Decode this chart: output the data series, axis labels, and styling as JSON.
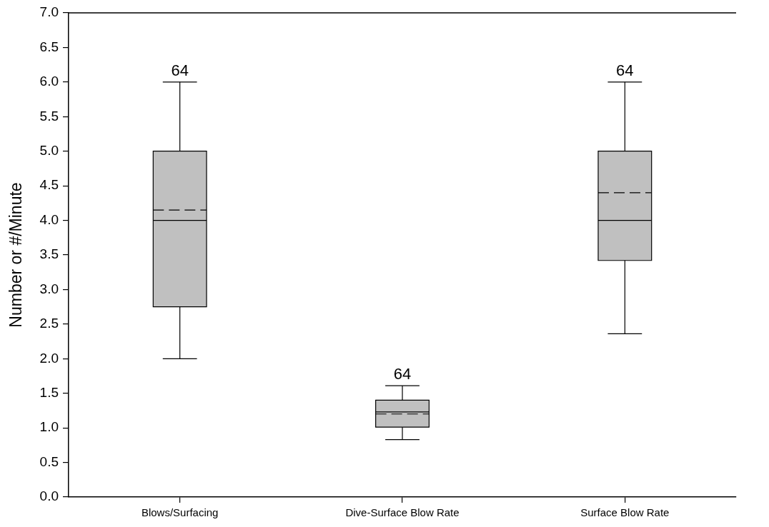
{
  "chart_data": {
    "type": "box",
    "ylabel": "Number or #/Minute",
    "categories": [
      "Blows/Surfacing",
      "Dive-Surface Blow Rate",
      "Surface Blow Rate"
    ],
    "color": "#c0c0c0",
    "boxes": [
      {
        "low": 2.0,
        "q1": 2.75,
        "median": 4.0,
        "q3": 5.0,
        "high": 6.0,
        "mean": 4.15
      },
      {
        "low": 0.83,
        "q1": 1.01,
        "median": 1.23,
        "q3": 1.4,
        "high": 1.61,
        "mean": 1.2
      },
      {
        "low": 2.36,
        "q1": 3.42,
        "median": 4.0,
        "q3": 5.0,
        "high": 6.0,
        "mean": 4.4
      }
    ],
    "ylim": [
      0,
      7
    ],
    "yticks": [
      {
        "value": 0,
        "label": "0.0"
      },
      {
        "value": 0.5,
        "label": "0.5"
      },
      {
        "value": 1,
        "label": "1.0"
      },
      {
        "value": 1.5,
        "label": "1.5"
      },
      {
        "value": 2,
        "label": "2.0"
      },
      {
        "value": 2.5,
        "label": "2.5"
      },
      {
        "value": 3,
        "label": "3.0"
      },
      {
        "value": 3.5,
        "label": "3.5"
      },
      {
        "value": 4,
        "label": "4.0"
      },
      {
        "value": 4.5,
        "label": "4.5"
      },
      {
        "value": 5,
        "label": "5.0"
      },
      {
        "value": 5.5,
        "label": "5.5"
      },
      {
        "value": 6,
        "label": "6.0"
      },
      {
        "value": 6.5,
        "label": "6.5"
      },
      {
        "value": 7,
        "label": "7.0"
      }
    ],
    "annotations": [
      {
        "text": "64",
        "x": "Blows/Surfacing",
        "y": 6.0
      },
      {
        "text": "64",
        "x": "Dive-Surface Blow Rate",
        "y": 1.61
      },
      {
        "text": "64",
        "x": "Surface Blow Rate",
        "y": 6.0
      }
    ]
  }
}
